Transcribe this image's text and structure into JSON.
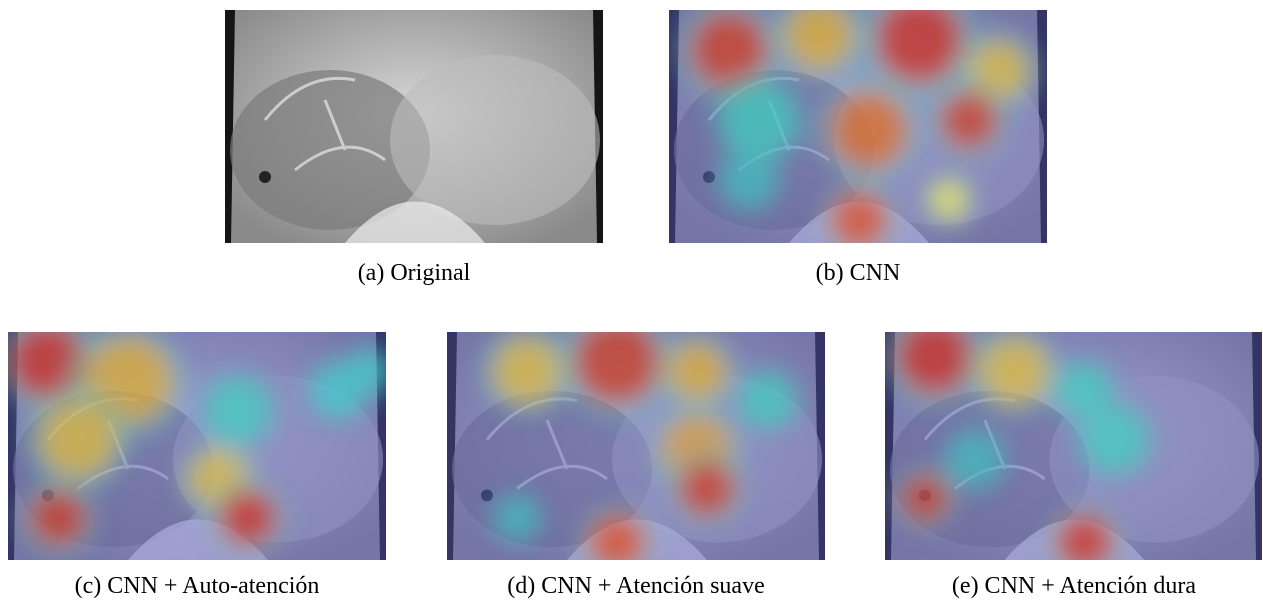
{
  "figures": [
    {
      "caption": "(a) Original"
    },
    {
      "caption": "(b) CNN"
    },
    {
      "caption": "(c) CNN + Auto-atención"
    },
    {
      "caption": "(d) CNN + Atención suave"
    },
    {
      "caption": "(e) CNN + Atención dura"
    }
  ]
}
